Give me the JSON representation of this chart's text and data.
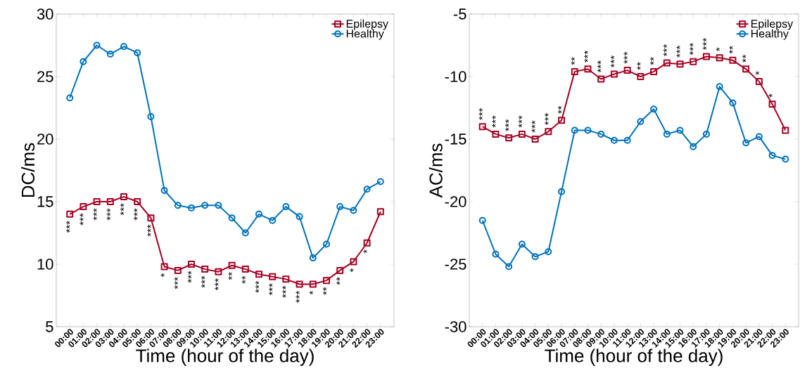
{
  "chart_data": [
    {
      "type": "line",
      "xlabel": "Time (hour of the day)",
      "ylabel": "DC/ms",
      "categories": [
        "00:00",
        "01:00",
        "02:00",
        "03:00",
        "04:00",
        "05:00",
        "06:00",
        "07:00",
        "08:00",
        "09:00",
        "10:00",
        "11:00",
        "12:00",
        "13:00",
        "14:00",
        "15:00",
        "16:00",
        "17:00",
        "18:00",
        "19:00",
        "20:00",
        "21:00",
        "22:00",
        "23:00"
      ],
      "ylim": [
        5,
        30
      ],
      "yticks": [
        5,
        10,
        15,
        20,
        25,
        30
      ],
      "legend": "top right",
      "grid": false,
      "series": [
        {
          "name": "Epilepsy",
          "color": "#a50021",
          "marker": "square",
          "values": [
            14.0,
            14.6,
            15.0,
            15.0,
            15.4,
            15.0,
            13.7,
            9.8,
            9.5,
            10.0,
            9.6,
            9.4,
            9.9,
            9.6,
            9.2,
            9.0,
            8.8,
            8.4,
            8.4,
            8.7,
            9.5,
            10.2,
            11.7,
            14.2
          ]
        },
        {
          "name": "Healthy",
          "color": "#0072bd",
          "marker": "circle",
          "values": [
            23.3,
            26.2,
            27.5,
            26.8,
            27.4,
            26.9,
            21.8,
            15.9,
            14.7,
            14.5,
            14.7,
            14.7,
            13.7,
            12.5,
            14.0,
            13.5,
            14.6,
            13.8,
            10.5,
            11.6,
            14.6,
            14.3,
            16.0,
            16.6
          ]
        }
      ],
      "annotations": [
        {
          "text": "***",
          "x": "00:00",
          "y": 14.0
        },
        {
          "text": "***",
          "x": "01:00",
          "y": 14.6
        },
        {
          "text": "***",
          "x": "02:00",
          "y": 15.0
        },
        {
          "text": "***",
          "x": "03:00",
          "y": 15.0
        },
        {
          "text": "***",
          "x": "04:00",
          "y": 15.4
        },
        {
          "text": "***",
          "x": "05:00",
          "y": 15.0
        },
        {
          "text": "***",
          "x": "06:00",
          "y": 13.7
        },
        {
          "text": "*",
          "x": "07:00",
          "y": 9.8
        },
        {
          "text": "***",
          "x": "08:00",
          "y": 9.5
        },
        {
          "text": "***",
          "x": "09:00",
          "y": 10.0
        },
        {
          "text": "***",
          "x": "10:00",
          "y": 9.6
        },
        {
          "text": "***",
          "x": "11:00",
          "y": 9.4
        },
        {
          "text": "**",
          "x": "12:00",
          "y": 9.9
        },
        {
          "text": "**",
          "x": "13:00",
          "y": 9.6
        },
        {
          "text": "***",
          "x": "14:00",
          "y": 9.2
        },
        {
          "text": "***",
          "x": "15:00",
          "y": 9.0
        },
        {
          "text": "***",
          "x": "16:00",
          "y": 8.8
        },
        {
          "text": "***",
          "x": "17:00",
          "y": 8.4
        },
        {
          "text": "*",
          "x": "18:00",
          "y": 8.4
        },
        {
          "text": "**",
          "x": "19:00",
          "y": 8.7
        },
        {
          "text": "**",
          "x": "20:00",
          "y": 9.5
        },
        {
          "text": "*",
          "x": "21:00",
          "y": 10.2
        },
        {
          "text": "*",
          "x": "22:00",
          "y": 11.7
        }
      ]
    },
    {
      "type": "line",
      "xlabel": "Time (hour of the day)",
      "ylabel": "AC/ms",
      "categories": [
        "00:00",
        "01:00",
        "02:00",
        "03:00",
        "04:00",
        "05:00",
        "06:00",
        "07:00",
        "08:00",
        "09:00",
        "10:00",
        "11:00",
        "12:00",
        "13:00",
        "14:00",
        "15:00",
        "16:00",
        "17:00",
        "18:00",
        "19:00",
        "20:00",
        "21:00",
        "22:00",
        "23:00"
      ],
      "ylim": [
        -30,
        -5
      ],
      "yticks": [
        -30,
        -25,
        -20,
        -15,
        -10,
        -5
      ],
      "legend": "top right",
      "grid": false,
      "series": [
        {
          "name": "Epilepsy",
          "color": "#a50021",
          "marker": "square",
          "values": [
            -14.0,
            -14.6,
            -14.9,
            -14.6,
            -15.0,
            -14.4,
            -13.5,
            -9.6,
            -9.4,
            -10.2,
            -9.8,
            -9.5,
            -10.0,
            -9.6,
            -8.9,
            -9.0,
            -8.8,
            -8.4,
            -8.5,
            -8.7,
            -9.4,
            -10.4,
            -12.2,
            -14.3
          ]
        },
        {
          "name": "Healthy",
          "color": "#0072bd",
          "marker": "circle",
          "values": [
            -21.5,
            -24.2,
            -25.2,
            -23.4,
            -24.4,
            -24.0,
            -19.2,
            -14.3,
            -14.3,
            -14.6,
            -15.1,
            -15.1,
            -13.6,
            -12.6,
            -14.6,
            -14.3,
            -15.6,
            -14.6,
            -10.8,
            -12.1,
            -15.3,
            -14.8,
            -16.3,
            -16.6
          ]
        }
      ],
      "annotations": [
        {
          "text": "***",
          "x": "00:00",
          "y": -14.0
        },
        {
          "text": "***",
          "x": "01:00",
          "y": -14.6
        },
        {
          "text": "***",
          "x": "02:00",
          "y": -14.9
        },
        {
          "text": "***",
          "x": "03:00",
          "y": -14.6
        },
        {
          "text": "***",
          "x": "04:00",
          "y": -15.0
        },
        {
          "text": "***",
          "x": "05:00",
          "y": -14.4
        },
        {
          "text": "**",
          "x": "06:00",
          "y": -13.5
        },
        {
          "text": "**",
          "x": "07:00",
          "y": -9.6
        },
        {
          "text": "***",
          "x": "08:00",
          "y": -9.4
        },
        {
          "text": "***",
          "x": "09:00",
          "y": -10.2
        },
        {
          "text": "***",
          "x": "10:00",
          "y": -9.8
        },
        {
          "text": "***",
          "x": "11:00",
          "y": -9.5
        },
        {
          "text": "**",
          "x": "12:00",
          "y": -10.0
        },
        {
          "text": "**",
          "x": "13:00",
          "y": -9.6
        },
        {
          "text": "***",
          "x": "14:00",
          "y": -8.9
        },
        {
          "text": "***",
          "x": "15:00",
          "y": -9.0
        },
        {
          "text": "***",
          "x": "16:00",
          "y": -8.8
        },
        {
          "text": "***",
          "x": "17:00",
          "y": -8.4
        },
        {
          "text": "*",
          "x": "18:00",
          "y": -8.5
        },
        {
          "text": "**",
          "x": "19:00",
          "y": -8.7
        },
        {
          "text": "**",
          "x": "20:00",
          "y": -9.4
        },
        {
          "text": "*",
          "x": "21:00",
          "y": -10.4
        },
        {
          "text": "*",
          "x": "22:00",
          "y": -12.2
        }
      ]
    }
  ]
}
